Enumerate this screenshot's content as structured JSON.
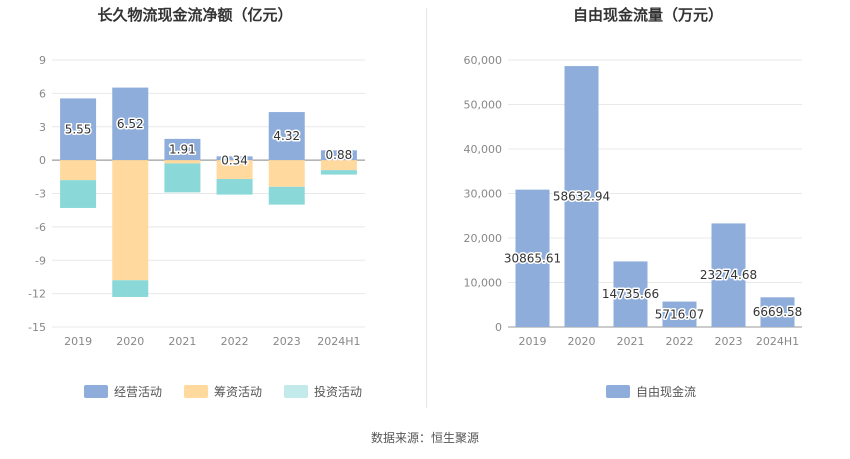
{
  "source_label": "数据来源：恒生聚源",
  "chart_data": [
    {
      "type": "bar",
      "stacked": true,
      "title": "长久物流现金流净额（亿元）",
      "categories": [
        "2019",
        "2020",
        "2021",
        "2022",
        "2023",
        "2024H1"
      ],
      "ylim": [
        -15,
        9
      ],
      "yticks": [
        9,
        6,
        3,
        0,
        -3,
        -6,
        -9,
        -12,
        -15
      ],
      "grid": true,
      "legend_position": "bottom",
      "series": [
        {
          "name": "经营活动",
          "color": "#8eaddb",
          "values": [
            5.55,
            6.52,
            1.91,
            0.34,
            4.32,
            0.88
          ],
          "labels": [
            "5.55",
            "6.52",
            "1.91",
            "0.34",
            "4.32",
            "0.88"
          ]
        },
        {
          "name": "筹资活动",
          "color": "#ffd99e",
          "values": [
            -1.8,
            -10.8,
            -0.3,
            -1.7,
            -2.4,
            -0.9
          ],
          "labels": []
        },
        {
          "name": "投资活动",
          "color": "#8bd8d8",
          "legend_color": "#c3eaea",
          "values": [
            -2.5,
            -1.5,
            -2.6,
            -1.4,
            -1.6,
            -0.4
          ],
          "labels": []
        }
      ]
    },
    {
      "type": "bar",
      "title": "自由现金流量（万元）",
      "categories": [
        "2019",
        "2020",
        "2021",
        "2022",
        "2023",
        "2024H1"
      ],
      "ylim": [
        0,
        60000
      ],
      "yticks": [
        60000,
        50000,
        40000,
        30000,
        20000,
        10000,
        0
      ],
      "ytick_labels": [
        "60,000",
        "50,000",
        "40,000",
        "30,000",
        "20,000",
        "10,000",
        "0"
      ],
      "grid": true,
      "legend_position": "bottom",
      "series": [
        {
          "name": "自由现金流",
          "color": "#8eaddb",
          "values": [
            30865.61,
            58632.94,
            14735.66,
            5716.07,
            23274.68,
            6669.58
          ],
          "labels": [
            "30865.61",
            "58632.94",
            "14735.66",
            "5716.07",
            "23274.68",
            "6669.58"
          ]
        }
      ]
    }
  ]
}
